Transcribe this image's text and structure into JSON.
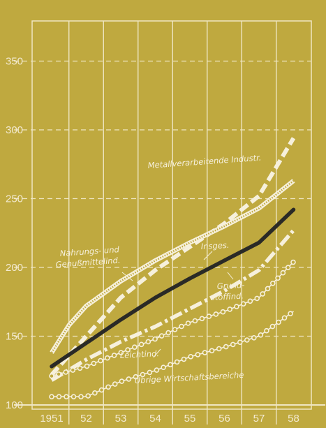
{
  "colors": {
    "background": "#bfa93f",
    "grid": "#efe6c2",
    "text": "#f3ead0",
    "series_light": "#f6f0dc",
    "series_dark": "#2a2a26"
  },
  "chart_data": {
    "type": "line",
    "title": "",
    "xlabel": "",
    "ylabel": "",
    "x": [
      1951,
      1952,
      1953,
      1954,
      1955,
      1956,
      1957,
      1958
    ],
    "x_tick_labels": [
      "1951",
      "52",
      "53",
      "54",
      "55",
      "56",
      "57",
      "58"
    ],
    "y_ticks": [
      100,
      150,
      200,
      250,
      300,
      350
    ],
    "ylim": [
      100,
      375
    ],
    "grid": true,
    "series": [
      {
        "name": "Metallverarbeitende Industr.",
        "style": "dashed-thick",
        "points": [
          [
            1951,
            122
          ],
          [
            1952,
            150
          ],
          [
            1953,
            178
          ],
          [
            1954,
            198
          ],
          [
            1955,
            215
          ],
          [
            1956,
            232
          ],
          [
            1957,
            252
          ],
          [
            1958,
            294
          ]
        ]
      },
      {
        "name": "Nahrungs- und Genußmittelind.",
        "style": "double",
        "points": [
          [
            1951,
            138
          ],
          [
            1951.5,
            158
          ],
          [
            1952,
            172
          ],
          [
            1953,
            190
          ],
          [
            1954,
            205
          ],
          [
            1955,
            218
          ],
          [
            1956,
            230
          ],
          [
            1957,
            243
          ],
          [
            1958,
            263
          ]
        ]
      },
      {
        "name": "Insges.",
        "style": "solid-dark",
        "points": [
          [
            1951,
            128
          ],
          [
            1952,
            145
          ],
          [
            1953,
            162
          ],
          [
            1954,
            178
          ],
          [
            1955,
            192
          ],
          [
            1956,
            205
          ],
          [
            1957,
            218
          ],
          [
            1958,
            242
          ]
        ]
      },
      {
        "name": "Grundstoffind.",
        "style": "dash-dot",
        "points": [
          [
            1951,
            118
          ],
          [
            1952,
            133
          ],
          [
            1953,
            146
          ],
          [
            1954,
            157
          ],
          [
            1955,
            170
          ],
          [
            1956,
            183
          ],
          [
            1957,
            198
          ],
          [
            1958,
            227
          ]
        ]
      },
      {
        "name": "Leichtind.",
        "style": "circles",
        "points": [
          [
            1951,
            121
          ],
          [
            1952,
            128
          ],
          [
            1953,
            138
          ],
          [
            1954,
            148
          ],
          [
            1955,
            160
          ],
          [
            1956,
            168
          ],
          [
            1957,
            178
          ],
          [
            1958,
            204
          ]
        ]
      },
      {
        "name": "Übrige Wirtschaftsbereiche",
        "style": "circles",
        "points": [
          [
            1951,
            106
          ],
          [
            1952,
            106
          ],
          [
            1953,
            117
          ],
          [
            1954,
            125
          ],
          [
            1955,
            135
          ],
          [
            1956,
            142
          ],
          [
            1957,
            150
          ],
          [
            1958,
            168
          ]
        ]
      }
    ],
    "annotations": [
      {
        "text": "Metallverarbeitende Industr.",
        "series": 0
      },
      {
        "text": "Nahrungs- und",
        "series": 1
      },
      {
        "text": "Genußmittelind.",
        "series": 1
      },
      {
        "text": "Insges.",
        "series": 2
      },
      {
        "text": "Grund-",
        "series": 3
      },
      {
        "text": "stoffind.",
        "series": 3
      },
      {
        "text": "Leichtind.",
        "series": 4
      },
      {
        "text": "Übrige Wirtschaftsbereiche",
        "series": 5
      }
    ]
  }
}
